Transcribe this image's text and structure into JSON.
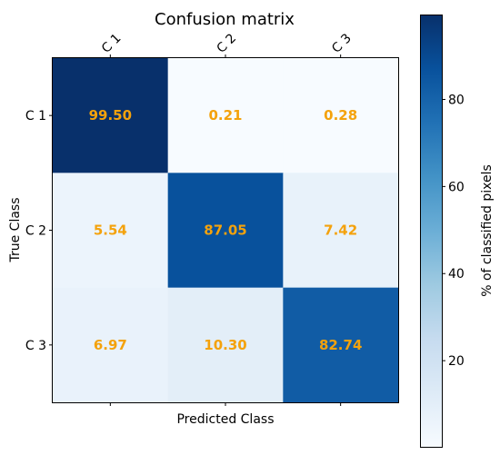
{
  "chart_data": {
    "type": "heatmap",
    "title": "Confusion matrix",
    "xlabel": "Predicted Class",
    "ylabel": "True Class",
    "x_categories": [
      "C 1",
      "C 2",
      "C 3"
    ],
    "y_categories": [
      "C 1",
      "C 2",
      "C 3"
    ],
    "values": [
      [
        99.5,
        0.21,
        0.28
      ],
      [
        5.54,
        87.05,
        7.42
      ],
      [
        6.97,
        10.3,
        82.74
      ]
    ],
    "cell_labels": [
      [
        "99.50",
        "0.21",
        "0.28"
      ],
      [
        "5.54",
        "87.05",
        "7.42"
      ],
      [
        "6.97",
        "10.30",
        "82.74"
      ]
    ],
    "colormap": "Blues",
    "colorbar": {
      "label": "% of classified pixels",
      "range": [
        0.21,
        99.5
      ],
      "ticks": [
        20,
        40,
        60,
        80
      ],
      "tick_labels": [
        "20",
        "40",
        "60",
        "80"
      ]
    },
    "annotation_color": "#f4a20c",
    "x_tick_position": "top",
    "grid": false
  }
}
